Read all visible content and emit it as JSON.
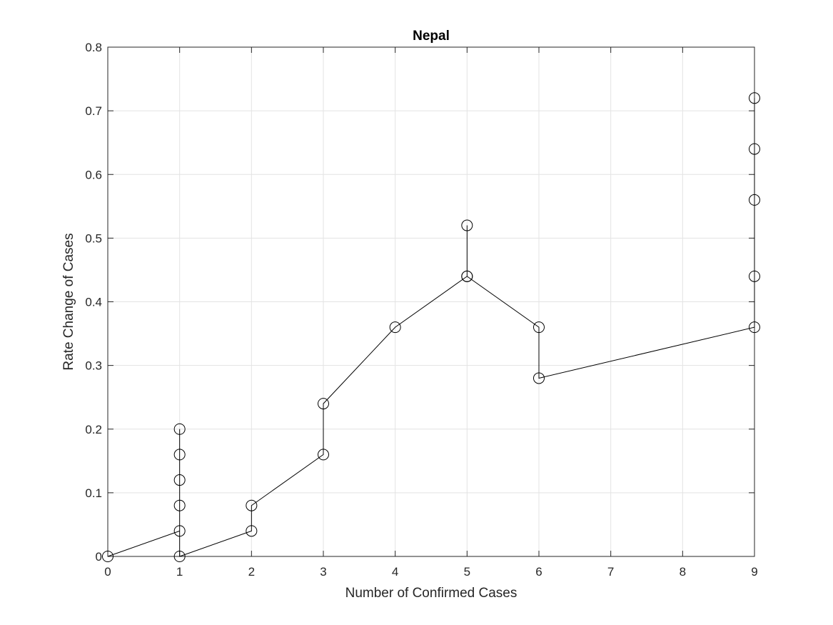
{
  "chart_data": {
    "type": "line",
    "title": "Nepal",
    "xlabel": "Number of Confirmed Cases",
    "ylabel": "Rate Change of Cases",
    "xlim": [
      0,
      9
    ],
    "ylim": [
      0,
      0.8
    ],
    "xticks": [
      0,
      1,
      2,
      3,
      4,
      5,
      6,
      7,
      8,
      9
    ],
    "yticks": [
      0,
      0.1,
      0.2,
      0.3,
      0.4,
      0.5,
      0.6,
      0.7,
      0.8
    ],
    "xtick_labels": [
      "0",
      "1",
      "2",
      "3",
      "4",
      "5",
      "6",
      "7",
      "8",
      "9"
    ],
    "ytick_labels": [
      "0",
      "0.1",
      "0.2",
      "0.3",
      "0.4",
      "0.5",
      "0.6",
      "0.7",
      "0.8"
    ],
    "grid": true,
    "marker": "circle",
    "line_color": "#000000",
    "series": [
      {
        "points": [
          [
            0,
            0
          ],
          [
            1,
            0.04
          ],
          [
            1,
            0.08
          ],
          [
            1,
            0.12
          ],
          [
            1,
            0.16
          ],
          [
            1,
            0.2
          ],
          [
            1,
            0
          ],
          [
            2,
            0.04
          ],
          [
            2,
            0.08
          ],
          [
            3,
            0.16
          ],
          [
            3,
            0.24
          ],
          [
            4,
            0.36
          ],
          [
            5,
            0.44
          ],
          [
            5,
            0.52
          ],
          [
            5,
            0.44
          ],
          [
            6,
            0.36
          ],
          [
            6,
            0.28
          ],
          [
            9,
            0.36
          ],
          [
            9,
            0.44
          ],
          [
            9,
            0.56
          ],
          [
            9,
            0.64
          ],
          [
            9,
            0.72
          ]
        ]
      }
    ]
  }
}
